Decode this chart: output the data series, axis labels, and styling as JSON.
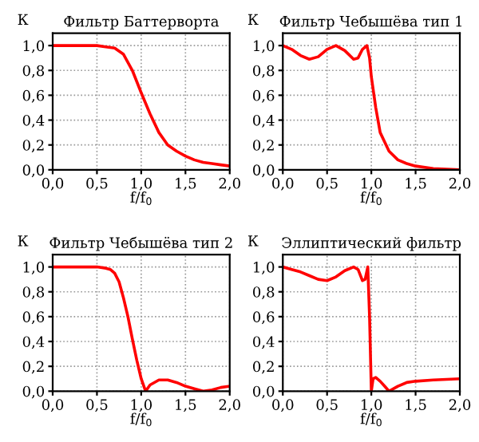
{
  "chart_data": [
    {
      "type": "line",
      "title": "Фильтр Баттерворта",
      "xlabel": "f/f$_{0}$",
      "ylabel": "К",
      "grid": true,
      "line_style": "solid",
      "xlim": [
        0,
        2
      ],
      "ylim": [
        0,
        1.1
      ],
      "xticks": [
        {
          "value": 0,
          "label": "0,0"
        },
        {
          "value": 0.5,
          "label": "0,5"
        },
        {
          "value": 1,
          "label": "1,0"
        },
        {
          "value": 1.5,
          "label": "1,5"
        },
        {
          "value": 2,
          "label": "2,0"
        }
      ],
      "yticks": [
        {
          "value": 0,
          "label": "0,0"
        },
        {
          "value": 0.2,
          "label": "0,2"
        },
        {
          "value": 0.4,
          "label": "0,4"
        },
        {
          "value": 0.6,
          "label": "0,6"
        },
        {
          "value": 0.8,
          "label": "0,8"
        },
        {
          "value": 1,
          "label": "1,0"
        }
      ],
      "series": [
        {
          "color": "#ff0000",
          "x": [
            0,
            0.5,
            0.6,
            0.7,
            0.8,
            0.9,
            1.0,
            1.1,
            1.2,
            1.3,
            1.4,
            1.5,
            1.6,
            1.7,
            1.8,
            1.9,
            2.0
          ],
          "values": [
            1.0,
            1.0,
            0.99,
            0.98,
            0.93,
            0.8,
            0.62,
            0.45,
            0.3,
            0.2,
            0.15,
            0.11,
            0.08,
            0.06,
            0.05,
            0.04,
            0.03
          ]
        }
      ]
    },
    {
      "type": "line",
      "title": "Фильтр Чебышёва тип 1",
      "xlabel": "f/f$_{0}$",
      "ylabel": "К",
      "grid": true,
      "line_style": "solid",
      "xlim": [
        0,
        2
      ],
      "ylim": [
        0,
        1.1
      ],
      "xticks": [
        {
          "value": 0,
          "label": "0,0"
        },
        {
          "value": 0.5,
          "label": "0,5"
        },
        {
          "value": 1,
          "label": "1,0"
        },
        {
          "value": 1.5,
          "label": "1,5"
        },
        {
          "value": 2,
          "label": "2,0"
        }
      ],
      "yticks": [
        {
          "value": 0,
          "label": "0,0"
        },
        {
          "value": 0.2,
          "label": "0,2"
        },
        {
          "value": 0.4,
          "label": "0,4"
        },
        {
          "value": 0.6,
          "label": "0,6"
        },
        {
          "value": 0.8,
          "label": "0,8"
        },
        {
          "value": 1,
          "label": "1,0"
        }
      ],
      "series": [
        {
          "color": "#ff0000",
          "x": [
            0,
            0.1,
            0.2,
            0.3,
            0.4,
            0.5,
            0.6,
            0.7,
            0.8,
            0.85,
            0.9,
            0.95,
            0.98,
            1.0,
            1.05,
            1.1,
            1.2,
            1.3,
            1.4,
            1.5,
            1.7,
            2.0
          ],
          "values": [
            1.0,
            0.97,
            0.92,
            0.89,
            0.91,
            0.97,
            1.0,
            0.96,
            0.89,
            0.9,
            0.97,
            1.0,
            0.9,
            0.75,
            0.5,
            0.3,
            0.15,
            0.08,
            0.05,
            0.03,
            0.01,
            0.0
          ]
        }
      ]
    },
    {
      "type": "line",
      "title": "Фильтр Чебышёва тип 2",
      "xlabel": "f/f$_{0}$",
      "ylabel": "К",
      "grid": true,
      "line_style": "solid",
      "xlim": [
        0,
        2
      ],
      "ylim": [
        0,
        1.1
      ],
      "xticks": [
        {
          "value": 0,
          "label": "0,0"
        },
        {
          "value": 0.5,
          "label": "0,5"
        },
        {
          "value": 1,
          "label": "1,0"
        },
        {
          "value": 1.5,
          "label": "1,5"
        },
        {
          "value": 2,
          "label": "2,0"
        }
      ],
      "yticks": [
        {
          "value": 0,
          "label": "0,0"
        },
        {
          "value": 0.2,
          "label": "0,2"
        },
        {
          "value": 0.4,
          "label": "0,4"
        },
        {
          "value": 0.6,
          "label": "0,6"
        },
        {
          "value": 0.8,
          "label": "0,8"
        },
        {
          "value": 1,
          "label": "1,0"
        }
      ],
      "series": [
        {
          "color": "#ff0000",
          "x": [
            0,
            0.5,
            0.6,
            0.65,
            0.7,
            0.75,
            0.8,
            0.85,
            0.9,
            0.95,
            1.0,
            1.05,
            1.1,
            1.2,
            1.3,
            1.4,
            1.5,
            1.6,
            1.7,
            1.8,
            1.9,
            2.0
          ],
          "values": [
            1.0,
            1.0,
            0.99,
            0.98,
            0.95,
            0.88,
            0.75,
            0.6,
            0.42,
            0.25,
            0.1,
            0.0,
            0.05,
            0.09,
            0.09,
            0.07,
            0.04,
            0.02,
            0.0,
            0.01,
            0.03,
            0.04
          ]
        }
      ]
    },
    {
      "type": "line",
      "title": "Эллиптический фильтр",
      "xlabel": "f/f$_{0}$",
      "ylabel": "К",
      "grid": true,
      "line_style": "solid",
      "xlim": [
        0,
        2
      ],
      "ylim": [
        0,
        1.1
      ],
      "xticks": [
        {
          "value": 0,
          "label": "0,0"
        },
        {
          "value": 0.5,
          "label": "0,5"
        },
        {
          "value": 1,
          "label": "1,0"
        },
        {
          "value": 1.5,
          "label": "1,5"
        },
        {
          "value": 2,
          "label": "2,0"
        }
      ],
      "yticks": [
        {
          "value": 0,
          "label": "0,0"
        },
        {
          "value": 0.2,
          "label": "0,2"
        },
        {
          "value": 0.4,
          "label": "0,4"
        },
        {
          "value": 0.6,
          "label": "0,6"
        },
        {
          "value": 0.8,
          "label": "0,8"
        },
        {
          "value": 1,
          "label": "1,0"
        }
      ],
      "series": [
        {
          "color": "#ff0000",
          "x": [
            0,
            0.1,
            0.2,
            0.3,
            0.4,
            0.5,
            0.6,
            0.7,
            0.8,
            0.85,
            0.9,
            0.93,
            0.96,
            0.98,
            1.0,
            1.02,
            1.05,
            1.1,
            1.15,
            1.2,
            1.3,
            1.4,
            1.5,
            1.7,
            2.0
          ],
          "values": [
            1.0,
            0.98,
            0.96,
            0.93,
            0.9,
            0.89,
            0.92,
            0.97,
            1.0,
            0.98,
            0.89,
            0.9,
            1.0,
            0.6,
            0.0,
            0.1,
            0.11,
            0.08,
            0.04,
            0.0,
            0.04,
            0.07,
            0.08,
            0.09,
            0.1
          ]
        }
      ]
    }
  ]
}
